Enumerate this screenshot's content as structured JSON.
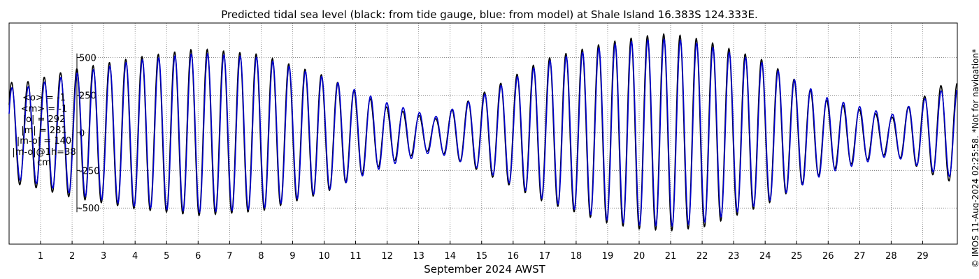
{
  "chart_data": {
    "type": "line",
    "title": "Predicted tidal sea level (black: from tide gauge, blue: from model) at Shale Island 16.383S 124.333E.",
    "xlabel": "September 2024 AWST",
    "ylabel": "",
    "xlim": [
      0,
      30.1
    ],
    "ylim": [
      -740,
      730
    ],
    "x_ticks": [
      1,
      2,
      3,
      4,
      5,
      6,
      7,
      8,
      9,
      10,
      11,
      12,
      13,
      14,
      15,
      16,
      17,
      18,
      19,
      20,
      21,
      22,
      23,
      24,
      25,
      26,
      27,
      28,
      29
    ],
    "y_ticks": [
      500,
      250,
      0,
      -250,
      -500
    ],
    "y_tick_labels": [
      "500",
      "250",
      "0",
      "-250",
      "-500"
    ],
    "grid": true,
    "series": [
      {
        "name": "black: from tide gauge",
        "color": "#000000",
        "x": [
          0.5,
          2,
          4,
          6,
          8,
          10,
          12,
          13.5,
          15,
          17,
          19,
          20,
          21,
          22,
          24,
          26,
          28,
          29.7
        ],
        "high": [
          335,
          420,
          500,
          560,
          520,
          380,
          170,
          90,
          260,
          490,
          600,
          640,
          660,
          620,
          480,
          210,
          100,
          330
        ],
        "low": [
          -345,
          -430,
          -505,
          -550,
          -520,
          -400,
          -200,
          -110,
          -260,
          -460,
          -600,
          -640,
          -650,
          -630,
          -480,
          -250,
          -135,
          -320
        ]
      },
      {
        "name": "blue: from model",
        "color": "#0000cc",
        "x": [
          0.5,
          2,
          4,
          6,
          8,
          10,
          12,
          13.5,
          15,
          17,
          19,
          20,
          21,
          22,
          24,
          26,
          28,
          29.7
        ],
        "high": [
          300,
          390,
          480,
          530,
          500,
          370,
          200,
          105,
          245,
          470,
          580,
          615,
          625,
          590,
          460,
          230,
          120,
          290
        ],
        "low": [
          -315,
          -405,
          -490,
          -530,
          -505,
          -390,
          -220,
          -125,
          -245,
          -445,
          -580,
          -615,
          -620,
          -600,
          -465,
          -265,
          -150,
          -290
        ]
      }
    ]
  },
  "stats": {
    "mean_o": "<o> = -1",
    "mean_m": "<m> = -1",
    "abs_o": "|o| = 292",
    "abs_m": "|m| = 281",
    "abs_mo": "|m-o| = 140",
    "abs_mo_1h": "|m-o|@1h=38",
    "unit": "cm"
  },
  "credit": "© IMOS 11-Aug-2024 02:25:58. *Not for navigation*"
}
